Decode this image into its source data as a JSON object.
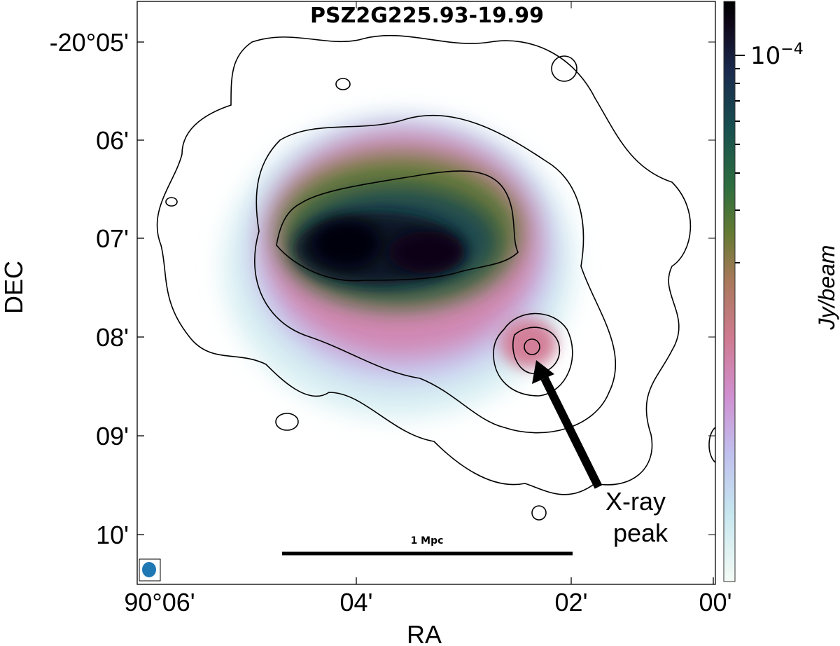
{
  "chart_data": {
    "type": "heatmap",
    "title": "PSZ2G225.93-19.99",
    "xlabel": "RA",
    "ylabel": "DEC",
    "x_ticks": [
      "90°06'",
      "04'",
      "02'",
      "00'"
    ],
    "y_ticks": [
      "-20°05'",
      "06'",
      "07'",
      "08'",
      "09'",
      "10'"
    ],
    "colorbar": {
      "label": "Jy/beam",
      "scale": "log",
      "major_tick_label": "10⁻⁴",
      "major_tick_base": "10",
      "major_tick_exp": "−4",
      "colormap": [
        "#f4fbf6",
        "#c6e6ef",
        "#c0c0ee",
        "#d08fd0",
        "#cf7a90",
        "#a8795a",
        "#657a32",
        "#2e6e3e",
        "#17504f",
        "#1a2a4e",
        "#10081a",
        "#000000"
      ]
    },
    "scalebar_label": "1 Mpc",
    "annotation": {
      "line1": "X-ray",
      "line2": "peak"
    },
    "overlay": "contours",
    "beam_color": "#1f77b4"
  }
}
